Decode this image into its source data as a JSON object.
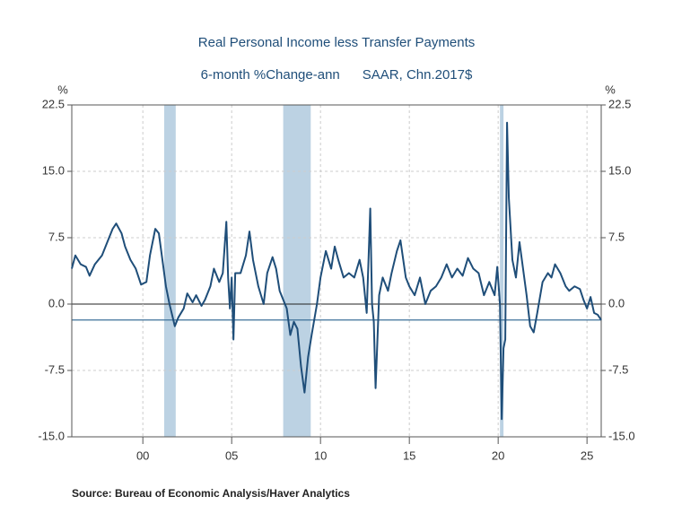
{
  "chart_data": {
    "type": "line",
    "title": "Real Personal Income less Transfer Payments",
    "subtitle": "6-month %Change-ann      SAAR, Chn.2017$",
    "y_label": "%",
    "y2_label": "%",
    "source": "Source:  Bureau of Economic Analysis/Haver Analytics",
    "xlim": [
      1996,
      2025.8
    ],
    "xticks": [
      {
        "value": 2000,
        "label": "00"
      },
      {
        "value": 2005,
        "label": "05"
      },
      {
        "value": 2010,
        "label": "10"
      },
      {
        "value": 2015,
        "label": "15"
      },
      {
        "value": 2020,
        "label": "20"
      },
      {
        "value": 2025,
        "label": "25"
      }
    ],
    "ylim": [
      -15,
      22.5
    ],
    "yticks": [
      {
        "value": -15,
        "label": "-15.0"
      },
      -7.5,
      {
        "value": 0,
        "label": "0.0"
      },
      7.5,
      {
        "value": 15,
        "label": "15.0"
      },
      22.5
    ],
    "y2lim": [
      -15,
      22.5
    ],
    "y2ticks": [
      {
        "value": -15,
        "label": "-15.0"
      },
      -7.5,
      {
        "value": 0,
        "label": "0.0"
      },
      7.5,
      {
        "value": 15,
        "label": "15.0"
      },
      22.5
    ],
    "grid": true,
    "recessions": [
      [
        2001.2,
        2001.85
      ],
      [
        2007.9,
        2009.45
      ],
      [
        2020.1,
        2020.3
      ]
    ],
    "recession_color": "#bcd2e3",
    "reference_line": -1.8,
    "reference_color": "#3d7099",
    "x": [
      1996.0,
      1996.2,
      1996.5,
      1996.8,
      1997.0,
      1997.3,
      1997.7,
      1998.0,
      1998.3,
      1998.5,
      1998.8,
      1999.0,
      1999.3,
      1999.6,
      1999.9,
      2000.2,
      2000.4,
      2000.7,
      2000.9,
      2001.1,
      2001.3,
      2001.5,
      2001.8,
      2002.0,
      2002.3,
      2002.5,
      2002.8,
      2003.0,
      2003.3,
      2003.5,
      2003.8,
      2004.0,
      2004.3,
      2004.5,
      2004.7,
      2004.8,
      2004.9,
      2005.0,
      2005.1,
      2005.2,
      2005.5,
      2005.8,
      2006.0,
      2006.2,
      2006.5,
      2006.8,
      2007.0,
      2007.3,
      2007.5,
      2007.7,
      2007.9,
      2008.1,
      2008.3,
      2008.5,
      2008.7,
      2008.9,
      2009.1,
      2009.3,
      2009.5,
      2009.8,
      2010.0,
      2010.3,
      2010.6,
      2010.8,
      2011.0,
      2011.3,
      2011.6,
      2011.9,
      2012.2,
      2012.4,
      2012.6,
      2012.8,
      2012.9,
      2013.0,
      2013.1,
      2013.3,
      2013.5,
      2013.8,
      2014.0,
      2014.3,
      2014.5,
      2014.8,
      2015.0,
      2015.3,
      2015.6,
      2015.9,
      2016.2,
      2016.5,
      2016.8,
      2017.1,
      2017.4,
      2017.7,
      2018.0,
      2018.3,
      2018.6,
      2018.9,
      2019.2,
      2019.5,
      2019.8,
      2019.95,
      2020.1,
      2020.2,
      2020.3,
      2020.4,
      2020.5,
      2020.6,
      2020.8,
      2021.0,
      2021.2,
      2021.4,
      2021.6,
      2021.8,
      2022.0,
      2022.2,
      2022.5,
      2022.8,
      2023.0,
      2023.2,
      2023.5,
      2023.8,
      2024.0,
      2024.3,
      2024.6,
      2024.8,
      2025.0,
      2025.2,
      2025.4,
      2025.6,
      2025.8
    ],
    "series": [
      {
        "name": "Real Personal Income less Transfer Payments",
        "color": "#1f4e79",
        "values": [
          4,
          5.5,
          4.5,
          4.2,
          3.2,
          4.5,
          5.5,
          7,
          8.5,
          9.1,
          8,
          6.5,
          5,
          4,
          2.2,
          2.5,
          5.5,
          8.5,
          8,
          5,
          2,
          0,
          -2.5,
          -1.5,
          -0.5,
          1.2,
          0.2,
          1,
          -0.2,
          0.5,
          2,
          4,
          2.5,
          3.5,
          9.3,
          3,
          -0.5,
          3,
          -4,
          3.5,
          3.5,
          5.5,
          8.2,
          5,
          2,
          0,
          3.5,
          5.3,
          4,
          1.5,
          0.5,
          -0.5,
          -3.5,
          -2,
          -2.8,
          -7,
          -10,
          -6,
          -3.5,
          0,
          3,
          6,
          4,
          6.5,
          5,
          3,
          3.5,
          3,
          5,
          3,
          -1,
          10.8,
          0,
          -2,
          -9.5,
          1,
          3,
          1.5,
          3.5,
          6,
          7.2,
          3,
          2,
          1,
          3,
          0,
          1.5,
          2,
          3,
          4.5,
          3,
          4,
          3.2,
          5.2,
          4,
          3.5,
          1,
          2.5,
          1,
          4.2,
          0,
          -13,
          -5,
          -4,
          20.5,
          12,
          5,
          3,
          7,
          4,
          1,
          -2.5,
          -3.2,
          -1,
          2.5,
          3.5,
          3,
          4.5,
          3.5,
          2,
          1.5,
          2,
          1.7,
          0.5,
          -0.5,
          0.8,
          -1,
          -1.2,
          -1.8
        ]
      }
    ]
  }
}
